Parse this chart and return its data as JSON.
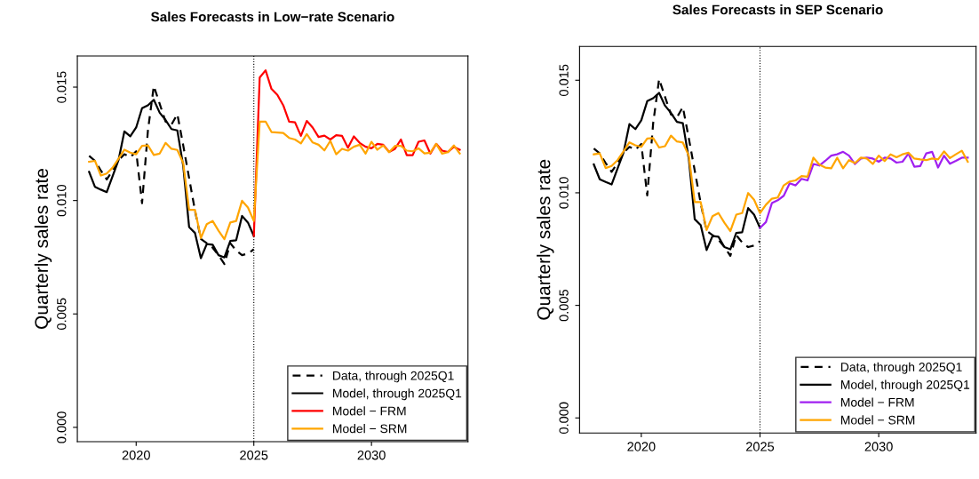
{
  "chart_data": [
    {
      "type": "line",
      "title": "Sales Forecasts in Low−rate Scenario",
      "ylabel": "Quarterly sales rate",
      "x": [
        2018,
        2018.25,
        2018.5,
        2018.75,
        2019,
        2019.25,
        2019.5,
        2019.75,
        2020,
        2020.25,
        2020.5,
        2020.75,
        2021,
        2021.25,
        2021.5,
        2021.75,
        2022,
        2022.25,
        2022.5,
        2022.75,
        2023,
        2023.25,
        2023.5,
        2023.75,
        2024,
        2024.25,
        2024.5,
        2024.75,
        2025,
        2025.25,
        2025.5,
        2025.75,
        2026,
        2026.25,
        2026.5,
        2026.75,
        2027,
        2027.25,
        2027.5,
        2027.75,
        2028,
        2028.25,
        2028.5,
        2028.75,
        2029,
        2029.25,
        2029.5,
        2029.75,
        2030,
        2030.25,
        2030.5,
        2030.75,
        2031,
        2031.25,
        2031.5,
        2031.75,
        2032,
        2032.25,
        2032.5,
        2032.75,
        2033,
        2033.25,
        2033.5,
        2033.75
      ],
      "series": [
        {
          "name": "Model − SRM",
          "color": "#ffa500",
          "line_style": "solid",
          "values": [
            0.01171,
            0.01175,
            0.0111,
            0.01119,
            0.01145,
            0.01184,
            0.01224,
            0.01211,
            0.01204,
            0.01241,
            0.01243,
            0.01201,
            0.01207,
            0.01254,
            0.01228,
            0.01223,
            0.01165,
            0.00959,
            0.00959,
            0.00835,
            0.00896,
            0.0091,
            0.00867,
            0.0083,
            0.00903,
            0.0091,
            0.00999,
            0.00969,
            0.0091,
            0.01348,
            0.01348,
            0.01302,
            0.013,
            0.01298,
            0.01276,
            0.01269,
            0.01252,
            0.01293,
            0.01256,
            0.01246,
            0.01221,
            0.01263,
            0.01204,
            0.01228,
            0.0122,
            0.01237,
            0.01246,
            0.01207,
            0.01259,
            0.01224,
            0.01243,
            0.01213,
            0.01241,
            0.01241,
            0.0122,
            0.01217,
            0.0123,
            0.01208,
            0.01211,
            0.0125,
            0.01207,
            0.01213,
            0.01243,
            0.01207
          ]
        },
        {
          "name": "Model − FRM",
          "color": "#ff0000",
          "line_style": "solid",
          "values": [
            null,
            null,
            null,
            null,
            null,
            null,
            null,
            null,
            null,
            null,
            null,
            null,
            null,
            null,
            null,
            null,
            null,
            null,
            null,
            null,
            null,
            null,
            null,
            null,
            null,
            null,
            null,
            null,
            0.00844,
            0.01542,
            0.01574,
            0.01492,
            0.01466,
            0.0142,
            0.01348,
            0.01345,
            0.01285,
            0.01351,
            0.01322,
            0.0128,
            0.01286,
            0.01269,
            0.01288,
            0.01285,
            0.01233,
            0.01283,
            0.01254,
            0.01237,
            0.0123,
            0.0125,
            0.01246,
            0.01214,
            0.01228,
            0.01269,
            0.012,
            0.012,
            0.01259,
            0.01265,
            0.01207,
            0.0125,
            0.0122,
            0.01214,
            0.01237,
            0.01224
          ]
        },
        {
          "name": "Model, through 2025Q1",
          "color": "#000000",
          "line_style": "solid",
          "values": [
            0.01126,
            0.0106,
            0.01048,
            0.01037,
            0.01108,
            0.01178,
            0.01305,
            0.01283,
            0.01322,
            0.01407,
            0.0142,
            0.01444,
            0.01387,
            0.01355,
            0.01315,
            0.01309,
            0.01152,
            0.00883,
            0.00857,
            0.00746,
            0.00808,
            0.00805,
            0.00759,
            0.00749,
            0.00822,
            0.00825,
            0.00932,
            0.00903,
            0.00844,
            null,
            null,
            null,
            null,
            null,
            null,
            null,
            null,
            null,
            null,
            null,
            null,
            null,
            null,
            null,
            null,
            null,
            null,
            null,
            null,
            null,
            null,
            null,
            null,
            null,
            null,
            null,
            null,
            null,
            null,
            null,
            null,
            null,
            null,
            null
          ]
        },
        {
          "name": "Data, through 2025Q1",
          "color": "#000000",
          "line_style": "dashed",
          "values": [
            0.01197,
            0.01175,
            0.01132,
            0.01093,
            0.01132,
            0.01178,
            0.01204,
            0.01191,
            0.01217,
            0.00988,
            0.01309,
            0.01505,
            0.01426,
            0.01348,
            0.01335,
            0.01381,
            0.01243,
            0.01099,
            0.00955,
            0.00831,
            0.00812,
            0.00792,
            0.00759,
            0.0072,
            0.00812,
            0.00779,
            0.00759,
            0.00766,
            0.00785,
            null,
            null,
            null,
            null,
            null,
            null,
            null,
            null,
            null,
            null,
            null,
            null,
            null,
            null,
            null,
            null,
            null,
            null,
            null,
            null,
            null,
            null,
            null,
            null,
            null,
            null,
            null,
            null,
            null,
            null,
            null,
            null,
            null,
            null,
            null
          ]
        }
      ],
      "xlim": [
        2017.5,
        2034.1
      ],
      "xticks": [
        2020,
        2025,
        2030
      ],
      "ylim": [
        -0.00063,
        0.01637
      ],
      "yticks": [
        {
          "value": 0,
          "label": "0.000"
        },
        {
          "value": 0.005,
          "label": "0.005"
        },
        {
          "value": 0.01,
          "label": "0.010"
        },
        {
          "value": 0.015,
          "label": "0.015"
        }
      ],
      "ref_lines": [
        {
          "axis": "x",
          "value": 2025,
          "color": "#000000",
          "line_style": "dotted"
        }
      ],
      "grid": false,
      "legend": "bottom right"
    },
    {
      "type": "line",
      "title": "Sales Forecasts in SEP Scenario",
      "ylabel": "Quarterly sales rate",
      "x": [
        2018,
        2018.25,
        2018.5,
        2018.75,
        2019,
        2019.25,
        2019.5,
        2019.75,
        2020,
        2020.25,
        2020.5,
        2020.75,
        2021,
        2021.25,
        2021.5,
        2021.75,
        2022,
        2022.25,
        2022.5,
        2022.75,
        2023,
        2023.25,
        2023.5,
        2023.75,
        2024,
        2024.25,
        2024.5,
        2024.75,
        2025,
        2025.25,
        2025.5,
        2025.75,
        2026,
        2026.25,
        2026.5,
        2026.75,
        2027,
        2027.25,
        2027.5,
        2027.75,
        2028,
        2028.25,
        2028.5,
        2028.75,
        2029,
        2029.25,
        2029.5,
        2029.75,
        2030,
        2030.25,
        2030.5,
        2030.75,
        2031,
        2031.25,
        2031.5,
        2031.75,
        2032,
        2032.25,
        2032.5,
        2032.75,
        2033,
        2033.25,
        2033.5,
        2033.75
      ],
      "series": [
        {
          "name": "Model − SRM",
          "color": "#ffa500",
          "line_style": "solid",
          "values": [
            0.01171,
            0.01175,
            0.0111,
            0.01119,
            0.01145,
            0.01184,
            0.01224,
            0.01211,
            0.01204,
            0.01241,
            0.01243,
            0.01201,
            0.01207,
            0.01254,
            0.01228,
            0.01223,
            0.01165,
            0.00959,
            0.00959,
            0.00835,
            0.00896,
            0.0091,
            0.00867,
            0.0083,
            0.00903,
            0.0091,
            0.00999,
            0.00969,
            0.0091,
            0.00947,
            0.00974,
            0.00979,
            0.01033,
            0.0105,
            0.01055,
            0.01074,
            0.01071,
            0.01156,
            0.01125,
            0.01112,
            0.01109,
            0.01156,
            0.01109,
            0.01145,
            0.01132,
            0.01156,
            0.01152,
            0.01128,
            0.01165,
            0.01141,
            0.01171,
            0.01158,
            0.01171,
            0.01178,
            0.01152,
            0.01148,
            0.01145,
            0.01152,
            0.01148,
            0.01184,
            0.01154,
            0.01171,
            0.01187,
            0.01138
          ]
        },
        {
          "name": "Model − FRM",
          "color": "#a020f0",
          "line_style": "solid",
          "values": [
            null,
            null,
            null,
            null,
            null,
            null,
            null,
            null,
            null,
            null,
            null,
            null,
            null,
            null,
            null,
            null,
            null,
            null,
            null,
            null,
            null,
            null,
            null,
            null,
            null,
            null,
            null,
            null,
            0.00844,
            0.0087,
            0.00954,
            0.00967,
            0.00987,
            0.01042,
            0.01033,
            0.01062,
            0.01055,
            0.01128,
            0.01121,
            0.01142,
            0.01165,
            0.01171,
            0.01182,
            0.01165,
            0.01128,
            0.01152,
            0.01156,
            0.01152,
            0.01138,
            0.01156,
            0.01152,
            0.01134,
            0.01138,
            0.01174,
            0.01116,
            0.01119,
            0.01175,
            0.01182,
            0.01112,
            0.01165,
            0.01129,
            0.01142,
            0.01156,
            0.01156
          ]
        },
        {
          "name": "Model, through 2025Q1",
          "color": "#000000",
          "line_style": "solid",
          "values": [
            0.01126,
            0.0106,
            0.01048,
            0.01037,
            0.01108,
            0.01178,
            0.01305,
            0.01283,
            0.01322,
            0.01407,
            0.0142,
            0.01444,
            0.01387,
            0.01355,
            0.01315,
            0.01309,
            0.01152,
            0.00883,
            0.00857,
            0.00746,
            0.00808,
            0.00805,
            0.00759,
            0.00749,
            0.00822,
            0.00825,
            0.00932,
            0.00903,
            0.00844,
            null,
            null,
            null,
            null,
            null,
            null,
            null,
            null,
            null,
            null,
            null,
            null,
            null,
            null,
            null,
            null,
            null,
            null,
            null,
            null,
            null,
            null,
            null,
            null,
            null,
            null,
            null,
            null,
            null,
            null,
            null,
            null,
            null,
            null,
            null
          ]
        },
        {
          "name": "Data, through 2025Q1",
          "color": "#000000",
          "line_style": "dashed",
          "values": [
            0.01197,
            0.01175,
            0.01132,
            0.01093,
            0.01132,
            0.01178,
            0.01204,
            0.01191,
            0.01217,
            0.00988,
            0.01309,
            0.01505,
            0.01426,
            0.01348,
            0.01335,
            0.01381,
            0.01243,
            0.01099,
            0.00955,
            0.00831,
            0.00812,
            0.00792,
            0.00759,
            0.0072,
            0.00812,
            0.00779,
            0.00759,
            0.00766,
            0.00785,
            null,
            null,
            null,
            null,
            null,
            null,
            null,
            null,
            null,
            null,
            null,
            null,
            null,
            null,
            null,
            null,
            null,
            null,
            null,
            null,
            null,
            null,
            null,
            null,
            null,
            null,
            null,
            null,
            null,
            null,
            null,
            null,
            null,
            null,
            null
          ]
        }
      ],
      "xlim": [
        2017.4,
        2034.1
      ],
      "xticks": [
        2020,
        2025,
        2030
      ],
      "ylim": [
        -0.00067,
        0.0165
      ],
      "yticks": [
        {
          "value": 0,
          "label": "0.000"
        },
        {
          "value": 0.005,
          "label": "0.005"
        },
        {
          "value": 0.01,
          "label": "0.010"
        },
        {
          "value": 0.015,
          "label": "0.015"
        }
      ],
      "ref_lines": [
        {
          "axis": "x",
          "value": 2025,
          "color": "#000000",
          "line_style": "dotted"
        }
      ],
      "grid": false,
      "legend": "bottom right"
    }
  ]
}
